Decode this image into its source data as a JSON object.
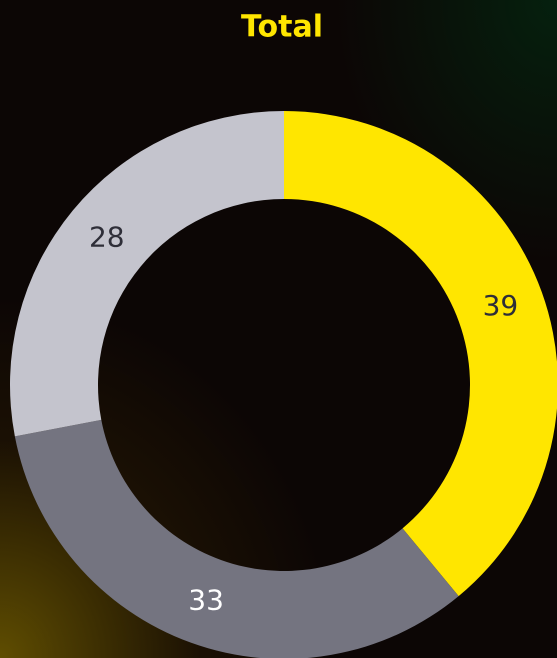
{
  "chart_data": {
    "type": "pie",
    "title": "Total",
    "values": [
      39,
      33,
      28
    ],
    "colors": [
      "#ffe600",
      "#747480",
      "#c4c4cd"
    ],
    "donut": true
  }
}
